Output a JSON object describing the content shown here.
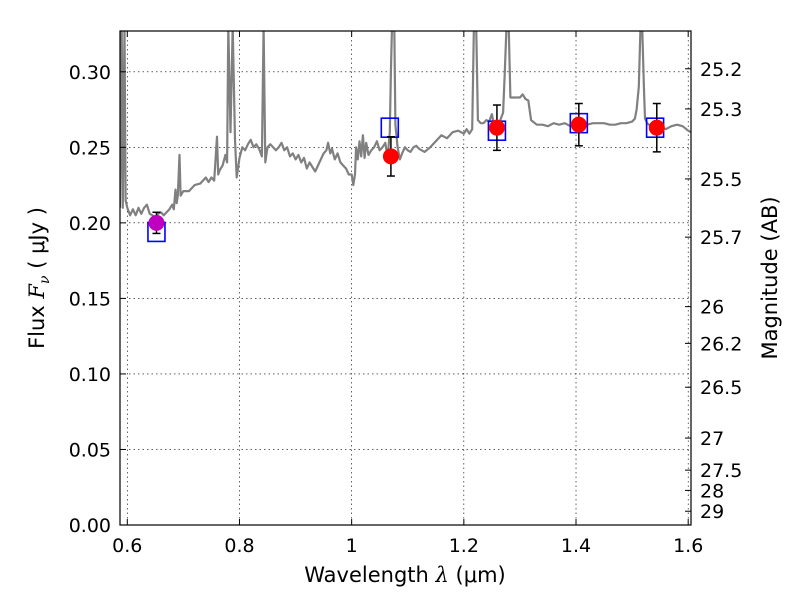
{
  "chart_data": {
    "type": "line",
    "title": "",
    "xlabel_parts": {
      "prefix": "Wavelength",
      "symbol": "λ",
      "unit": "(μm)"
    },
    "ylabel_parts": {
      "prefix": "Flux",
      "symbol": "F",
      "subscript": "ν",
      "unit": "( μJy )"
    },
    "right_label": "Magnitude (AB)",
    "xlim": [
      0.587,
      1.605
    ],
    "ylim": [
      0.0,
      0.327
    ],
    "x_ticks": [
      0.6,
      0.8,
      1.0,
      1.2,
      1.4,
      1.6
    ],
    "x_tick_labels": [
      "0.6",
      "0.8",
      "1",
      "1.2",
      "1.4",
      "1.6"
    ],
    "y_ticks": [
      0.0,
      0.05,
      0.1,
      0.15,
      0.2,
      0.25,
      0.3
    ],
    "y_tick_labels": [
      "0.00",
      "0.05",
      "0.10",
      "0.15",
      "0.20",
      "0.25",
      "0.30"
    ],
    "right_ticks": [
      "25.2",
      "25.3",
      "25.5",
      "25.7",
      "26",
      "26.2",
      "26.5",
      "27",
      "27.5",
      "28",
      "29"
    ],
    "grid": true,
    "grid_style": "dotted",
    "colors": {
      "spectrum": "#808080",
      "model_box": "#0000ff",
      "observed": "#ff0000",
      "observed_first": "#bf00bf",
      "errorbar": "#000000"
    },
    "spectrum": [
      [
        0.587,
        0.21
      ],
      [
        0.59,
        0.33
      ],
      [
        0.592,
        0.21
      ],
      [
        0.595,
        0.33
      ],
      [
        0.597,
        0.215
      ],
      [
        0.6,
        0.21
      ],
      [
        0.605,
        0.205
      ],
      [
        0.61,
        0.209
      ],
      [
        0.615,
        0.205
      ],
      [
        0.62,
        0.21
      ],
      [
        0.625,
        0.206
      ],
      [
        0.63,
        0.21
      ],
      [
        0.635,
        0.212
      ],
      [
        0.64,
        0.206
      ],
      [
        0.645,
        0.205
      ],
      [
        0.65,
        0.203
      ],
      [
        0.655,
        0.206
      ],
      [
        0.66,
        0.207
      ],
      [
        0.665,
        0.205
      ],
      [
        0.67,
        0.207
      ],
      [
        0.675,
        0.209
      ],
      [
        0.68,
        0.212
      ],
      [
        0.683,
        0.209
      ],
      [
        0.686,
        0.222
      ],
      [
        0.688,
        0.213
      ],
      [
        0.69,
        0.218
      ],
      [
        0.693,
        0.245
      ],
      [
        0.695,
        0.218
      ],
      [
        0.7,
        0.221
      ],
      [
        0.71,
        0.221
      ],
      [
        0.72,
        0.225
      ],
      [
        0.73,
        0.226
      ],
      [
        0.74,
        0.23
      ],
      [
        0.745,
        0.227
      ],
      [
        0.75,
        0.23
      ],
      [
        0.755,
        0.228
      ],
      [
        0.76,
        0.257
      ],
      [
        0.762,
        0.232
      ],
      [
        0.765,
        0.235
      ],
      [
        0.77,
        0.238
      ],
      [
        0.775,
        0.245
      ],
      [
        0.778,
        0.24
      ],
      [
        0.78,
        0.33
      ],
      [
        0.784,
        0.26
      ],
      [
        0.788,
        0.33
      ],
      [
        0.792,
        0.255
      ],
      [
        0.795,
        0.23
      ],
      [
        0.8,
        0.243
      ],
      [
        0.805,
        0.25
      ],
      [
        0.81,
        0.248
      ],
      [
        0.815,
        0.252
      ],
      [
        0.82,
        0.255
      ],
      [
        0.825,
        0.25
      ],
      [
        0.83,
        0.252
      ],
      [
        0.835,
        0.249
      ],
      [
        0.84,
        0.244
      ],
      [
        0.843,
        0.33
      ],
      [
        0.846,
        0.24
      ],
      [
        0.85,
        0.25
      ],
      [
        0.855,
        0.252
      ],
      [
        0.86,
        0.25
      ],
      [
        0.865,
        0.248
      ],
      [
        0.87,
        0.25
      ],
      [
        0.875,
        0.253
      ],
      [
        0.88,
        0.248
      ],
      [
        0.885,
        0.25
      ],
      [
        0.89,
        0.244
      ],
      [
        0.895,
        0.246
      ],
      [
        0.9,
        0.242
      ],
      [
        0.905,
        0.245
      ],
      [
        0.91,
        0.24
      ],
      [
        0.915,
        0.243
      ],
      [
        0.92,
        0.236
      ],
      [
        0.925,
        0.24
      ],
      [
        0.93,
        0.237
      ],
      [
        0.935,
        0.234
      ],
      [
        0.94,
        0.238
      ],
      [
        0.945,
        0.242
      ],
      [
        0.95,
        0.246
      ],
      [
        0.955,
        0.248
      ],
      [
        0.958,
        0.253
      ],
      [
        0.962,
        0.246
      ],
      [
        0.965,
        0.249
      ],
      [
        0.97,
        0.242
      ],
      [
        0.975,
        0.246
      ],
      [
        0.98,
        0.24
      ],
      [
        0.985,
        0.238
      ],
      [
        0.99,
        0.236
      ],
      [
        0.995,
        0.232
      ],
      [
        1.0,
        0.232
      ],
      [
        1.003,
        0.225
      ],
      [
        1.006,
        0.232
      ],
      [
        1.008,
        0.25
      ],
      [
        1.011,
        0.242
      ],
      [
        1.014,
        0.254
      ],
      [
        1.017,
        0.244
      ],
      [
        1.02,
        0.258
      ],
      [
        1.023,
        0.243
      ],
      [
        1.026,
        0.253
      ],
      [
        1.03,
        0.245
      ],
      [
        1.035,
        0.248
      ],
      [
        1.04,
        0.25
      ],
      [
        1.045,
        0.254
      ],
      [
        1.05,
        0.248
      ],
      [
        1.055,
        0.25
      ],
      [
        1.06,
        0.253
      ],
      [
        1.064,
        0.243
      ],
      [
        1.068,
        0.26
      ],
      [
        1.07,
        0.3
      ],
      [
        1.072,
        0.33
      ],
      [
        1.076,
        0.33
      ],
      [
        1.078,
        0.265
      ],
      [
        1.082,
        0.25
      ],
      [
        1.086,
        0.242
      ],
      [
        1.09,
        0.246
      ],
      [
        1.095,
        0.25
      ],
      [
        1.1,
        0.248
      ],
      [
        1.105,
        0.247
      ],
      [
        1.11,
        0.25
      ],
      [
        1.115,
        0.251
      ],
      [
        1.12,
        0.249
      ],
      [
        1.13,
        0.247
      ],
      [
        1.14,
        0.25
      ],
      [
        1.15,
        0.254
      ],
      [
        1.16,
        0.258
      ],
      [
        1.17,
        0.256
      ],
      [
        1.18,
        0.26
      ],
      [
        1.19,
        0.261
      ],
      [
        1.2,
        0.259
      ],
      [
        1.205,
        0.262
      ],
      [
        1.21,
        0.259
      ],
      [
        1.215,
        0.262
      ],
      [
        1.218,
        0.33
      ],
      [
        1.222,
        0.33
      ],
      [
        1.225,
        0.268
      ],
      [
        1.23,
        0.266
      ],
      [
        1.235,
        0.266
      ],
      [
        1.24,
        0.268
      ],
      [
        1.245,
        0.267
      ],
      [
        1.25,
        0.272
      ],
      [
        1.255,
        0.262
      ],
      [
        1.26,
        0.262
      ],
      [
        1.265,
        0.268
      ],
      [
        1.27,
        0.273
      ],
      [
        1.273,
        0.3
      ],
      [
        1.276,
        0.33
      ],
      [
        1.28,
        0.33
      ],
      [
        1.283,
        0.283
      ],
      [
        1.29,
        0.283
      ],
      [
        1.3,
        0.283
      ],
      [
        1.305,
        0.285
      ],
      [
        1.31,
        0.282
      ],
      [
        1.315,
        0.281
      ],
      [
        1.32,
        0.268
      ],
      [
        1.33,
        0.265
      ],
      [
        1.34,
        0.265
      ],
      [
        1.35,
        0.264
      ],
      [
        1.36,
        0.266
      ],
      [
        1.37,
        0.265
      ],
      [
        1.38,
        0.266
      ],
      [
        1.39,
        0.264
      ],
      [
        1.4,
        0.264
      ],
      [
        1.41,
        0.266
      ],
      [
        1.42,
        0.265
      ],
      [
        1.43,
        0.266
      ],
      [
        1.44,
        0.266
      ],
      [
        1.45,
        0.266
      ],
      [
        1.46,
        0.265
      ],
      [
        1.47,
        0.265
      ],
      [
        1.48,
        0.266
      ],
      [
        1.49,
        0.266
      ],
      [
        1.5,
        0.267
      ],
      [
        1.505,
        0.269
      ],
      [
        1.508,
        0.275
      ],
      [
        1.512,
        0.29
      ],
      [
        1.515,
        0.33
      ],
      [
        1.518,
        0.33
      ],
      [
        1.521,
        0.29
      ],
      [
        1.523,
        0.269
      ],
      [
        1.527,
        0.266
      ],
      [
        1.53,
        0.265
      ],
      [
        1.54,
        0.264
      ],
      [
        1.55,
        0.264
      ],
      [
        1.56,
        0.262
      ],
      [
        1.57,
        0.264
      ],
      [
        1.58,
        0.265
      ],
      [
        1.59,
        0.264
      ],
      [
        1.6,
        0.261
      ],
      [
        1.605,
        0.26
      ]
    ],
    "model_points": [
      {
        "x": 0.652,
        "y": 0.194
      },
      {
        "x": 1.068,
        "y": 0.263
      },
      {
        "x": 1.259,
        "y": 0.261
      },
      {
        "x": 1.405,
        "y": 0.266
      },
      {
        "x": 1.541,
        "y": 0.263
      }
    ],
    "observed_points": [
      {
        "x": 0.652,
        "y": 0.2,
        "yerr": 0.007
      },
      {
        "x": 1.07,
        "y": 0.244,
        "yerr": 0.013
      },
      {
        "x": 1.259,
        "y": 0.263,
        "yerr": 0.015
      },
      {
        "x": 1.405,
        "y": 0.265,
        "yerr": 0.014
      },
      {
        "x": 1.544,
        "y": 0.263,
        "yerr": 0.016
      }
    ]
  }
}
